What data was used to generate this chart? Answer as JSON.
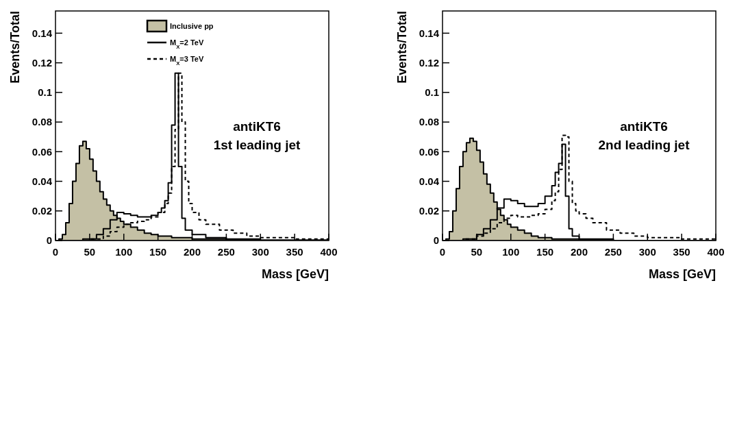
{
  "chart_data": [
    {
      "type": "step",
      "xlabel": "Mass [GeV]",
      "ylabel": "Events/Total",
      "annotations": [
        "antiKT6",
        "1st leading jet"
      ],
      "xlim": [
        0,
        400
      ],
      "ylim": [
        0,
        0.155
      ],
      "xticks": [
        0,
        50,
        100,
        150,
        200,
        250,
        300,
        350,
        400
      ],
      "yticks": [
        0,
        0.02,
        0.04,
        0.06,
        0.08,
        0.1,
        0.12,
        0.14
      ],
      "legend": "top",
      "series": [
        {
          "name": "Inclusive pp",
          "type": "area",
          "color": "#c4c0a5",
          "x": [
            0,
            5,
            10,
            15,
            20,
            25,
            30,
            35,
            40,
            45,
            50,
            55,
            60,
            65,
            70,
            75,
            80,
            85,
            90,
            95,
            100,
            110,
            120,
            130,
            140,
            150,
            170,
            200,
            250,
            300,
            400
          ],
          "values": [
            0,
            0.001,
            0.004,
            0.012,
            0.025,
            0.04,
            0.052,
            0.064,
            0.067,
            0.062,
            0.055,
            0.047,
            0.04,
            0.033,
            0.028,
            0.024,
            0.02,
            0.017,
            0.015,
            0.013,
            0.011,
            0.009,
            0.007,
            0.005,
            0.004,
            0.003,
            0.002,
            0.001,
            0.0003,
            0,
            0
          ]
        },
        {
          "name": "M$_{X}$=2 TeV",
          "type": "step",
          "color": "#000000",
          "line_style": "solid",
          "x": [
            0,
            40,
            60,
            70,
            80,
            90,
            100,
            110,
            120,
            130,
            140,
            150,
            155,
            160,
            165,
            170,
            175,
            180,
            185,
            190,
            200,
            220,
            250,
            300,
            400
          ],
          "values": [
            0,
            0.001,
            0.004,
            0.008,
            0.014,
            0.019,
            0.018,
            0.017,
            0.016,
            0.016,
            0.017,
            0.019,
            0.022,
            0.027,
            0.039,
            0.078,
            0.113,
            0.05,
            0.015,
            0.007,
            0.004,
            0.002,
            0.001,
            0.0003,
            0
          ]
        },
        {
          "name": "M$_{X}$=3 TeV",
          "type": "step",
          "color": "#000000",
          "line_style": "dashed",
          "x": [
            0,
            50,
            70,
            80,
            90,
            100,
            110,
            120,
            130,
            140,
            150,
            160,
            165,
            170,
            175,
            180,
            185,
            190,
            195,
            200,
            210,
            220,
            240,
            260,
            280,
            300,
            350,
            400
          ],
          "values": [
            0,
            0.001,
            0.003,
            0.006,
            0.009,
            0.011,
            0.012,
            0.013,
            0.014,
            0.016,
            0.019,
            0.025,
            0.032,
            0.05,
            0.075,
            0.113,
            0.08,
            0.04,
            0.025,
            0.019,
            0.014,
            0.011,
            0.007,
            0.005,
            0.003,
            0.002,
            0.001,
            0
          ]
        }
      ]
    },
    {
      "type": "step",
      "xlabel": "Mass [GeV]",
      "ylabel": "Events/Total",
      "annotations": [
        "antiKT6",
        "2nd leading jet"
      ],
      "xlim": [
        0,
        400
      ],
      "ylim": [
        0,
        0.155
      ],
      "xticks": [
        0,
        50,
        100,
        150,
        200,
        250,
        300,
        350,
        400
      ],
      "yticks": [
        0,
        0.02,
        0.04,
        0.06,
        0.08,
        0.1,
        0.12,
        0.14
      ],
      "series": [
        {
          "type": "area",
          "color": "#c4c0a5",
          "x": [
            0,
            5,
            10,
            15,
            20,
            25,
            30,
            35,
            40,
            45,
            50,
            55,
            60,
            65,
            70,
            75,
            80,
            85,
            90,
            95,
            100,
            110,
            120,
            130,
            140,
            160,
            200,
            250,
            400
          ],
          "values": [
            0,
            0.001,
            0.006,
            0.02,
            0.035,
            0.05,
            0.06,
            0.066,
            0.069,
            0.067,
            0.061,
            0.053,
            0.045,
            0.038,
            0.032,
            0.026,
            0.021,
            0.017,
            0.014,
            0.011,
            0.009,
            0.007,
            0.005,
            0.003,
            0.002,
            0.001,
            0.0005,
            0,
            0
          ]
        },
        {
          "type": "step",
          "color": "#000000",
          "line_style": "solid",
          "x": [
            0,
            30,
            50,
            60,
            70,
            80,
            90,
            100,
            110,
            120,
            130,
            140,
            150,
            160,
            165,
            170,
            175,
            180,
            185,
            190,
            200,
            250,
            400
          ],
          "values": [
            0,
            0.001,
            0.004,
            0.008,
            0.014,
            0.022,
            0.028,
            0.027,
            0.025,
            0.023,
            0.023,
            0.025,
            0.03,
            0.037,
            0.046,
            0.052,
            0.065,
            0.03,
            0.008,
            0.003,
            0.001,
            0,
            0
          ]
        },
        {
          "type": "step",
          "color": "#000000",
          "line_style": "dashed",
          "x": [
            0,
            30,
            50,
            60,
            70,
            80,
            90,
            100,
            110,
            120,
            130,
            140,
            150,
            160,
            165,
            170,
            175,
            180,
            185,
            190,
            195,
            200,
            210,
            220,
            240,
            260,
            280,
            300,
            350,
            400
          ],
          "values": [
            0,
            0.001,
            0.003,
            0.005,
            0.008,
            0.012,
            0.015,
            0.017,
            0.016,
            0.016,
            0.017,
            0.018,
            0.021,
            0.027,
            0.033,
            0.048,
            0.071,
            0.07,
            0.04,
            0.025,
            0.02,
            0.018,
            0.015,
            0.012,
            0.007,
            0.005,
            0.003,
            0.002,
            0.001,
            0
          ]
        }
      ]
    }
  ]
}
